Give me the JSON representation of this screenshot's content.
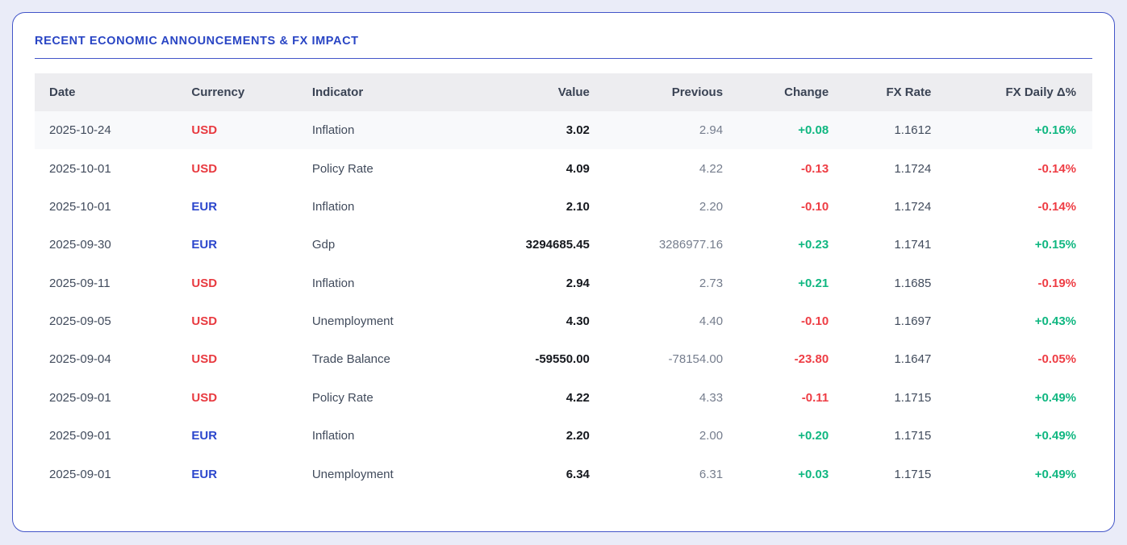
{
  "card": {
    "title": "RECENT ECONOMIC ANNOUNCEMENTS & FX IMPACT"
  },
  "colors": {
    "accent": "#2945c4",
    "card_border": "#4355c8",
    "page_background": "#eaecf8",
    "header_background": "#ededf0",
    "row_highlight": "#f8f9fb",
    "positive": "#10b781",
    "negative": "#ee3d44",
    "usd": "#e8393f",
    "eur": "#2b46cc"
  },
  "table": {
    "columns": [
      {
        "key": "date",
        "label": "Date",
        "align": "left"
      },
      {
        "key": "currency",
        "label": "Currency",
        "align": "left"
      },
      {
        "key": "indicator",
        "label": "Indicator",
        "align": "left"
      },
      {
        "key": "value",
        "label": "Value",
        "align": "right"
      },
      {
        "key": "previous",
        "label": "Previous",
        "align": "right"
      },
      {
        "key": "change",
        "label": "Change",
        "align": "right"
      },
      {
        "key": "fx_rate",
        "label": "FX Rate",
        "align": "right"
      },
      {
        "key": "fx_daily",
        "label": "FX Daily Δ%",
        "align": "right"
      }
    ],
    "rows": [
      {
        "date": "2025-10-24",
        "currency": "USD",
        "indicator": "Inflation",
        "value": "3.02",
        "previous": "2.94",
        "change": "+0.08",
        "fx_rate": "1.1612",
        "fx_daily": "+0.16%",
        "highlighted": true
      },
      {
        "date": "2025-10-01",
        "currency": "USD",
        "indicator": "Policy Rate",
        "value": "4.09",
        "previous": "4.22",
        "change": "-0.13",
        "fx_rate": "1.1724",
        "fx_daily": "-0.14%",
        "highlighted": false
      },
      {
        "date": "2025-10-01",
        "currency": "EUR",
        "indicator": "Inflation",
        "value": "2.10",
        "previous": "2.20",
        "change": "-0.10",
        "fx_rate": "1.1724",
        "fx_daily": "-0.14%",
        "highlighted": false
      },
      {
        "date": "2025-09-30",
        "currency": "EUR",
        "indicator": "Gdp",
        "value": "3294685.45",
        "previous": "3286977.16",
        "change": "+0.23",
        "fx_rate": "1.1741",
        "fx_daily": "+0.15%",
        "highlighted": false
      },
      {
        "date": "2025-09-11",
        "currency": "USD",
        "indicator": "Inflation",
        "value": "2.94",
        "previous": "2.73",
        "change": "+0.21",
        "fx_rate": "1.1685",
        "fx_daily": "-0.19%",
        "highlighted": false
      },
      {
        "date": "2025-09-05",
        "currency": "USD",
        "indicator": "Unemployment",
        "value": "4.30",
        "previous": "4.40",
        "change": "-0.10",
        "fx_rate": "1.1697",
        "fx_daily": "+0.43%",
        "highlighted": false
      },
      {
        "date": "2025-09-04",
        "currency": "USD",
        "indicator": "Trade Balance",
        "value": "-59550.00",
        "previous": "-78154.00",
        "change": "-23.80",
        "fx_rate": "1.1647",
        "fx_daily": "-0.05%",
        "highlighted": false
      },
      {
        "date": "2025-09-01",
        "currency": "USD",
        "indicator": "Policy Rate",
        "value": "4.22",
        "previous": "4.33",
        "change": "-0.11",
        "fx_rate": "1.1715",
        "fx_daily": "+0.49%",
        "highlighted": false
      },
      {
        "date": "2025-09-01",
        "currency": "EUR",
        "indicator": "Inflation",
        "value": "2.20",
        "previous": "2.00",
        "change": "+0.20",
        "fx_rate": "1.1715",
        "fx_daily": "+0.49%",
        "highlighted": false
      },
      {
        "date": "2025-09-01",
        "currency": "EUR",
        "indicator": "Unemployment",
        "value": "6.34",
        "previous": "6.31",
        "change": "+0.03",
        "fx_rate": "1.1715",
        "fx_daily": "+0.49%",
        "highlighted": false
      }
    ]
  }
}
